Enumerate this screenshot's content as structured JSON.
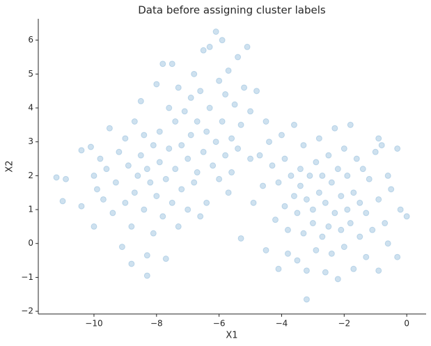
{
  "chart_data": {
    "type": "scatter",
    "title": "Data before assigning cluster labels",
    "xlabel": "X1",
    "ylabel": "X2",
    "color": "#1f77b4",
    "opacity": 0.22,
    "x": [
      -11.2,
      -11.0,
      -10.9,
      -10.4,
      -10.4,
      -10.1,
      -10.0,
      -10.0,
      -9.9,
      -9.8,
      -9.7,
      -9.6,
      -9.5,
      -9.4,
      -9.3,
      -9.2,
      -9.1,
      -9.0,
      -9.0,
      -8.9,
      -8.8,
      -8.8,
      -8.7,
      -8.7,
      -8.6,
      -8.5,
      -8.5,
      -8.4,
      -8.4,
      -8.3,
      -8.3,
      -8.3,
      -8.2,
      -8.1,
      -8.1,
      -8.0,
      -8.0,
      -7.9,
      -7.9,
      -7.8,
      -7.8,
      -7.7,
      -7.7,
      -7.6,
      -7.6,
      -7.5,
      -7.5,
      -7.4,
      -7.4,
      -7.3,
      -7.3,
      -7.2,
      -7.2,
      -7.1,
      -7.0,
      -7.0,
      -6.9,
      -6.9,
      -6.8,
      -6.8,
      -6.7,
      -6.7,
      -6.6,
      -6.6,
      -6.5,
      -6.5,
      -6.4,
      -6.4,
      -6.3,
      -6.3,
      -6.2,
      -6.1,
      -6.1,
      -6.0,
      -6.0,
      -5.9,
      -5.9,
      -5.8,
      -5.8,
      -5.7,
      -5.7,
      -5.6,
      -5.6,
      -5.5,
      -5.4,
      -5.4,
      -5.3,
      -5.3,
      -5.2,
      -5.1,
      -5.0,
      -5.0,
      -4.9,
      -4.8,
      -4.7,
      -4.6,
      -4.5,
      -4.5,
      -4.4,
      -4.3,
      -4.2,
      -4.1,
      -4.1,
      -4.0,
      -3.9,
      -3.9,
      -3.8,
      -3.8,
      -3.7,
      -3.6,
      -3.6,
      -3.5,
      -3.5,
      -3.4,
      -3.4,
      -3.3,
      -3.3,
      -3.2,
      -3.2,
      -3.2,
      -3.1,
      -3.0,
      -3.0,
      -2.9,
      -2.9,
      -2.8,
      -2.8,
      -2.7,
      -2.7,
      -2.6,
      -2.6,
      -2.5,
      -2.5,
      -2.4,
      -2.4,
      -2.3,
      -2.3,
      -2.2,
      -2.2,
      -2.1,
      -2.1,
      -2.0,
      -2.0,
      -1.9,
      -1.9,
      -1.8,
      -1.8,
      -1.7,
      -1.7,
      -1.6,
      -1.5,
      -1.5,
      -1.4,
      -1.3,
      -1.3,
      -1.2,
      -1.1,
      -1.0,
      -0.9,
      -0.9,
      -0.8,
      -0.7,
      -0.6,
      -0.5,
      -0.3,
      -0.3,
      -0.2,
      0.0,
      -0.6,
      -0.9
    ],
    "y": [
      1.95,
      1.25,
      1.9,
      1.1,
      2.75,
      2.85,
      0.5,
      2.0,
      1.6,
      2.5,
      1.3,
      2.2,
      3.4,
      0.9,
      1.8,
      2.7,
      -0.1,
      3.1,
      1.2,
      2.3,
      -0.6,
      0.5,
      1.5,
      3.6,
      2.0,
      2.6,
      4.2,
      1.0,
      3.2,
      -0.95,
      2.2,
      -0.35,
      1.8,
      2.9,
      0.3,
      4.7,
      1.4,
      2.4,
      3.3,
      5.3,
      0.8,
      1.9,
      -0.45,
      2.8,
      4.0,
      1.2,
      5.3,
      2.2,
      3.6,
      0.5,
      4.6,
      1.6,
      2.9,
      3.9,
      1.0,
      2.5,
      4.3,
      3.2,
      1.8,
      5.0,
      2.1,
      3.6,
      0.8,
      4.5,
      5.7,
      2.7,
      3.3,
      1.2,
      4.0,
      5.8,
      2.3,
      6.25,
      3.0,
      4.8,
      1.9,
      6.0,
      3.6,
      2.6,
      4.4,
      1.5,
      5.1,
      3.1,
      2.1,
      4.1,
      2.8,
      5.5,
      3.5,
      0.15,
      4.6,
      5.8,
      2.5,
      3.9,
      1.2,
      4.5,
      2.6,
      1.7,
      3.6,
      -0.2,
      3.0,
      2.3,
      0.7,
      -0.75,
      1.8,
      3.2,
      1.1,
      2.5,
      0.4,
      -0.3,
      2.0,
      1.4,
      3.5,
      0.9,
      -0.5,
      2.2,
      1.7,
      0.3,
      2.9,
      -1.65,
      1.3,
      -0.8,
      2.0,
      0.6,
      1.0,
      2.4,
      -0.2,
      1.5,
      3.1,
      0.2,
      2.0,
      -0.85,
      1.2,
      2.6,
      0.5,
      -0.3,
      1.8,
      3.4,
      0.9,
      -1.05,
      2.2,
      0.4,
      1.4,
      2.8,
      -0.1,
      1.0,
      2.0,
      0.6,
      3.5,
      -0.75,
      1.5,
      2.5,
      0.2,
      1.2,
      2.2,
      -0.4,
      0.9,
      1.9,
      0.4,
      2.7,
      -0.8,
      1.3,
      2.9,
      0.6,
      2.0,
      1.6,
      -0.4,
      2.8,
      1.0,
      0.8,
      0.0,
      3.1
    ],
    "xlim": [
      -11.78,
      0.62
    ],
    "xticks": [
      {
        "value": -10,
        "label": "−10"
      },
      {
        "value": -8,
        "label": "−8"
      },
      {
        "value": -6,
        "label": "−6"
      },
      {
        "value": -4,
        "label": "−4"
      },
      {
        "value": -2,
        "label": "−2"
      },
      0
    ],
    "ylim": [
      -2.08,
      6.63
    ],
    "yticks": [
      {
        "value": -2,
        "label": "−2"
      },
      {
        "value": -1,
        "label": "−1"
      },
      0,
      1,
      2,
      3,
      4,
      5,
      6
    ]
  }
}
